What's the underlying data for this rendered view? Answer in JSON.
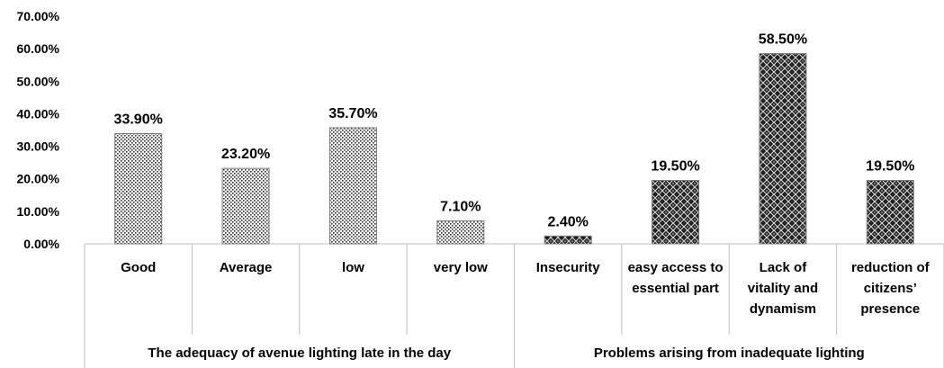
{
  "chart_data": {
    "type": "bar",
    "title": "",
    "xlabel": "",
    "ylabel": "",
    "ylim": [
      0,
      70
    ],
    "yticks": [
      "0.00%",
      "10.00%",
      "20.00%",
      "30.00%",
      "40.00%",
      "50.00%",
      "60.00%",
      "70.00%"
    ],
    "grid": false,
    "legend": "none",
    "groups": [
      {
        "name": "The adequacy of avenue lighting late in the day",
        "categories": [
          [
            "Good"
          ],
          [
            "Average"
          ],
          [
            "low"
          ],
          [
            "very low"
          ]
        ],
        "values": [
          33.9,
          23.2,
          35.7,
          7.1
        ],
        "labels": [
          "33.90%",
          "23.20%",
          "35.70%",
          "7.10%"
        ],
        "pattern": "light-dots"
      },
      {
        "name": "Problems arising from inadequate lighting",
        "categories": [
          [
            "Insecurity"
          ],
          [
            "easy access to",
            "essential part"
          ],
          [
            "Lack of",
            "vitality and",
            "dynamism"
          ],
          [
            "reduction of",
            "citizens’",
            "presence"
          ]
        ],
        "values": [
          2.4,
          19.5,
          58.5,
          19.5
        ],
        "labels": [
          "2.40%",
          "19.50%",
          "58.50%",
          "19.50%"
        ],
        "pattern": "dark-lattice"
      }
    ]
  }
}
